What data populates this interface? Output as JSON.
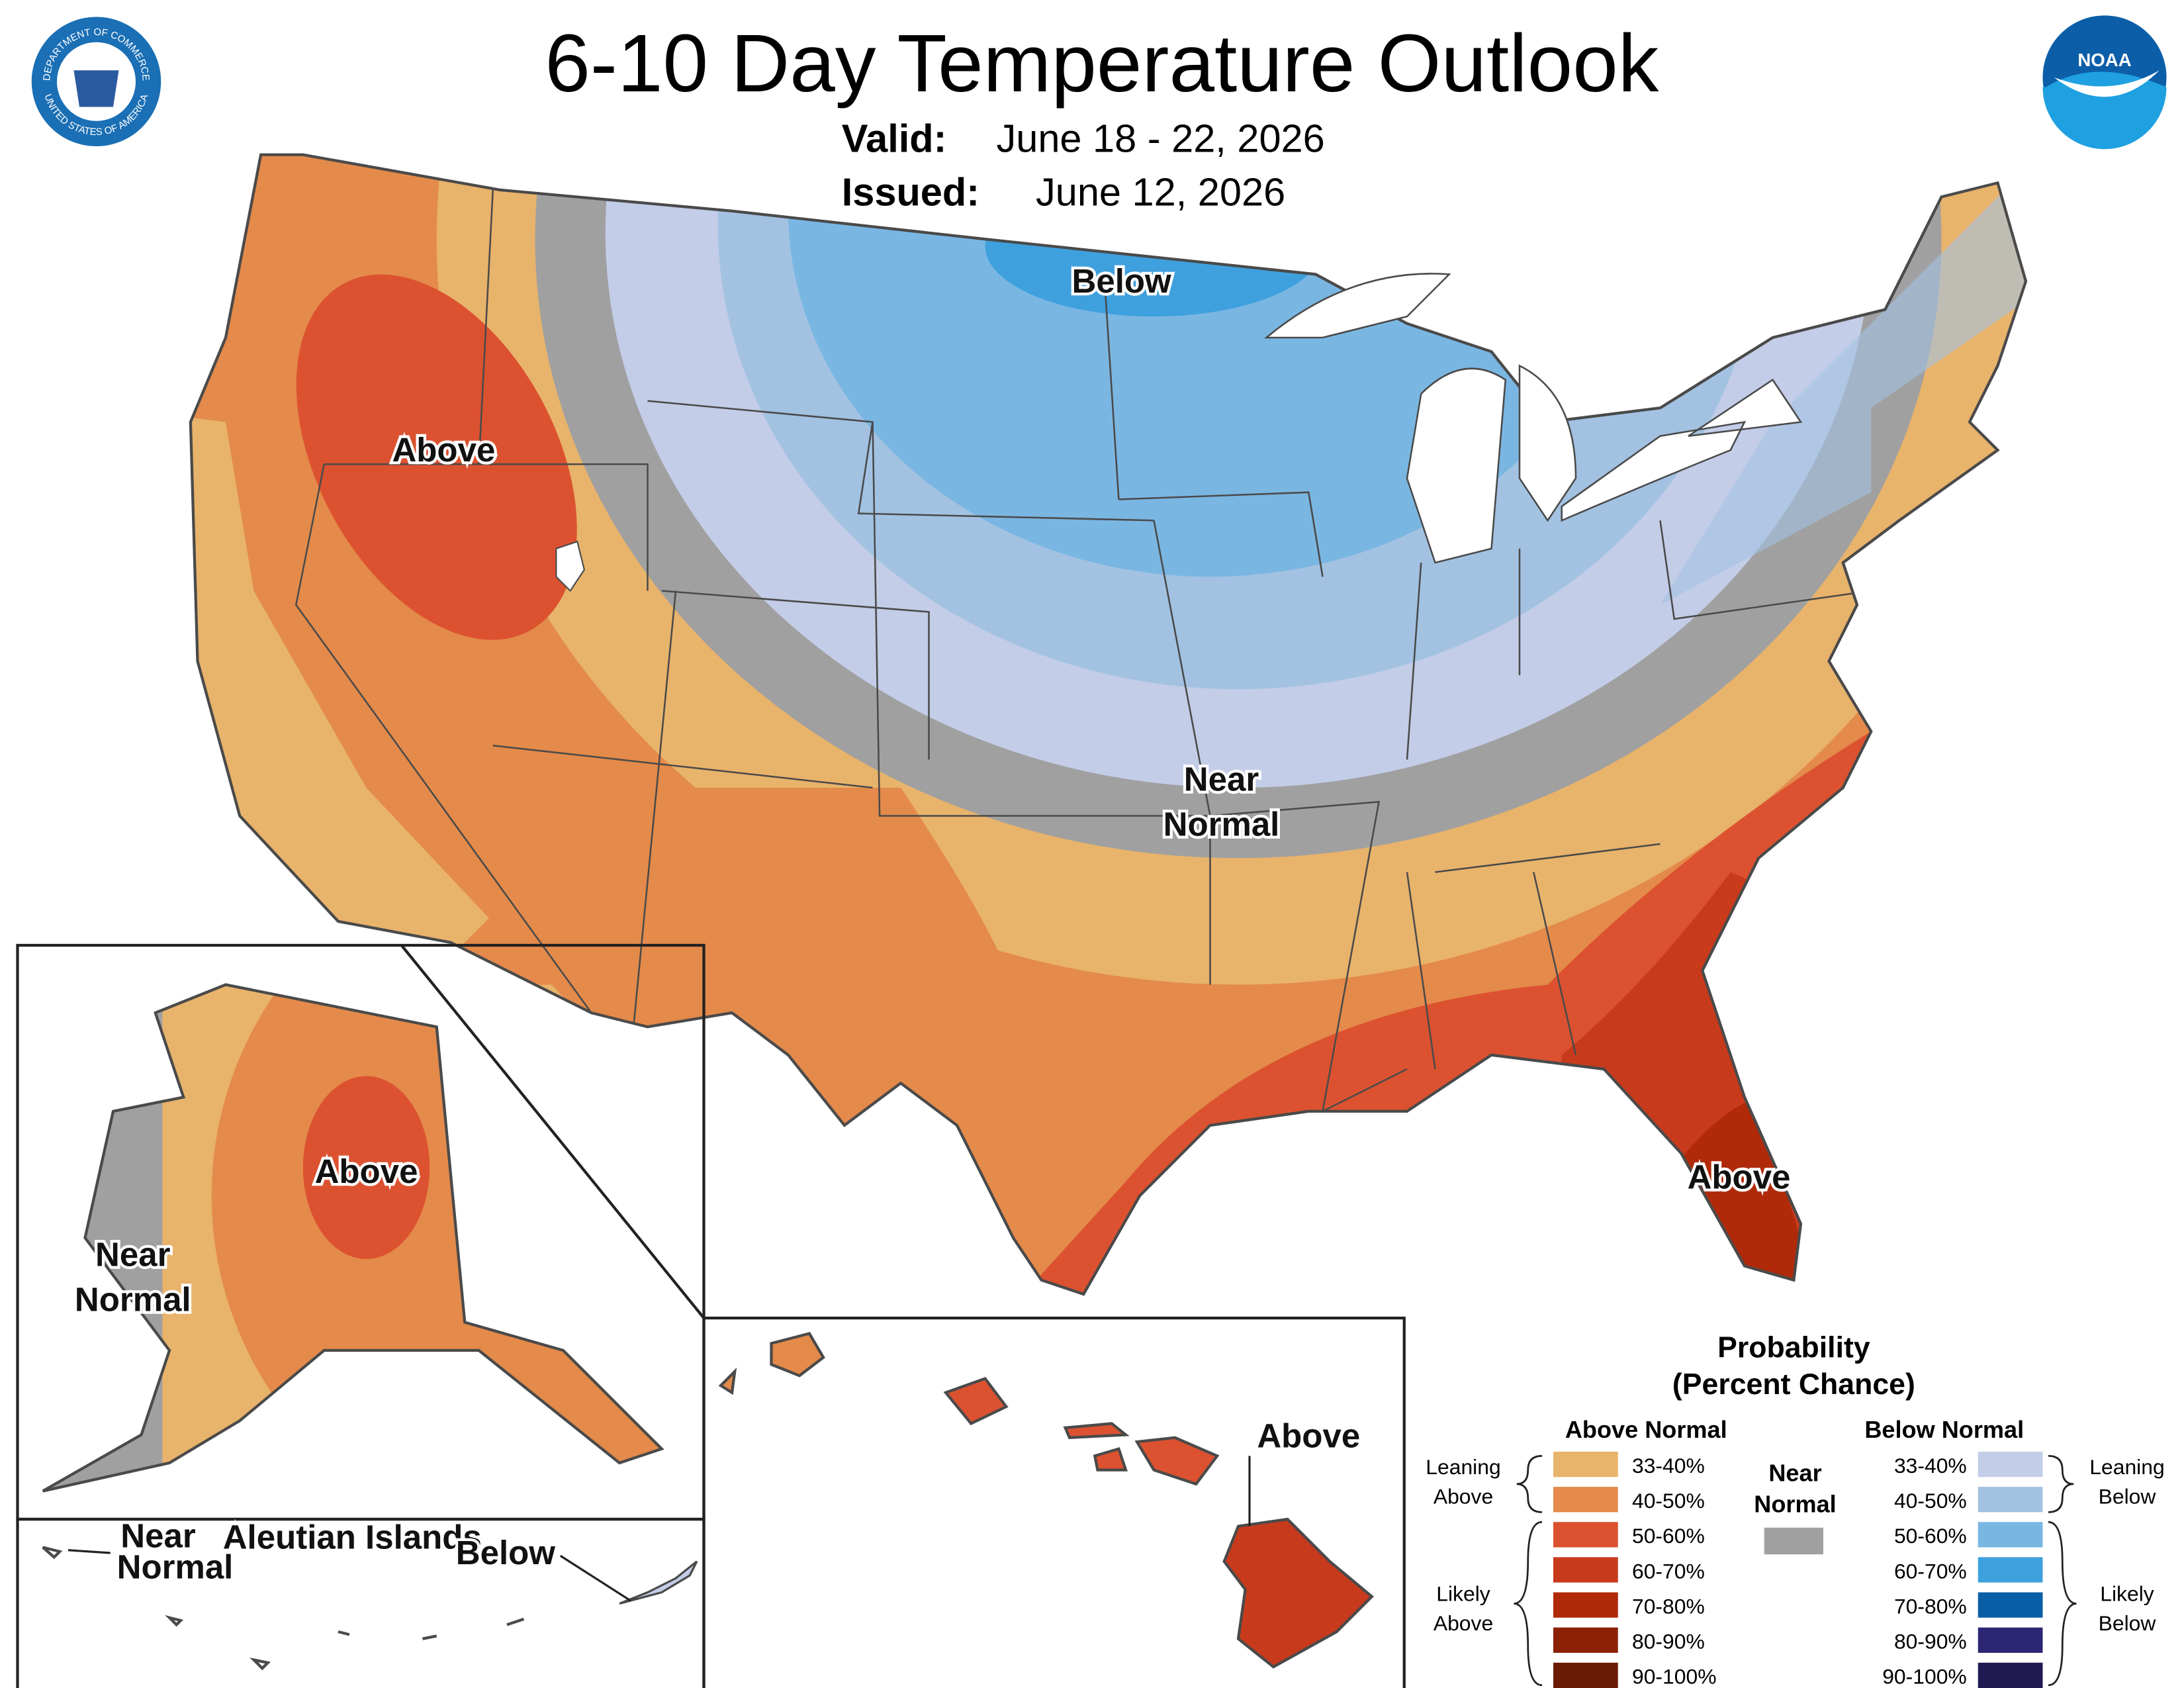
{
  "header": {
    "title": "6-10 Day Temperature Outlook",
    "valid_label": "Valid:",
    "valid": "June 18 - 22, 2026",
    "issued_label": "Issued:",
    "issued": "June 12, 2026"
  },
  "logos": {
    "doc_top": "DEPARTMENT OF COMMERCE",
    "doc_bottom": "UNITED STATES OF AMERICA",
    "noaa": "NOAA"
  },
  "map_labels": {
    "midwest": [
      "Below"
    ],
    "west": [
      "Above"
    ],
    "central": [
      "Near",
      "Normal"
    ],
    "florida": [
      "Above"
    ],
    "alaska_above": [
      "Above"
    ],
    "alaska_near": [
      "Near",
      "Normal"
    ],
    "aleutian_near": [
      "Near",
      "Normal"
    ],
    "aleutian_title": [
      "Aleutian Islands"
    ],
    "aleutian_below": [
      "Below"
    ],
    "hawaii": [
      "Above"
    ]
  },
  "legend": {
    "title": [
      "Probability",
      "(Percent Chance)"
    ],
    "near": {
      "label": [
        "Near",
        "Normal"
      ],
      "color": "#a0a0a0"
    },
    "above": {
      "label": "Above Normal",
      "items": [
        {
          "label": "33-40%",
          "color": "#e8b36b"
        },
        {
          "label": "40-50%",
          "color": "#e48a4a"
        },
        {
          "label": "50-60%",
          "color": "#dc5230"
        },
        {
          "label": "60-70%",
          "color": "#c83a1c"
        },
        {
          "label": "70-80%",
          "color": "#b02a0a"
        },
        {
          "label": "80-90%",
          "color": "#8c2106"
        },
        {
          "label": "90-100%",
          "color": "#6b1a03"
        }
      ],
      "leaning": [
        "Leaning",
        "Above"
      ],
      "likely": [
        "Likely",
        "Above"
      ]
    },
    "below": {
      "label": "Below Normal",
      "items": [
        {
          "label": "33-40%",
          "color": "#c3cde8"
        },
        {
          "label": "40-50%",
          "color": "#a3c2e2"
        },
        {
          "label": "50-60%",
          "color": "#7ab6e2"
        },
        {
          "label": "60-70%",
          "color": "#3fa0de"
        },
        {
          "label": "70-80%",
          "color": "#0a5ea6"
        },
        {
          "label": "80-90%",
          "color": "#2d2674"
        },
        {
          "label": "90-100%",
          "color": "#1f1a52"
        }
      ],
      "leaning": [
        "Leaning",
        "Below"
      ],
      "likely": [
        "Likely",
        "Below"
      ]
    }
  }
}
